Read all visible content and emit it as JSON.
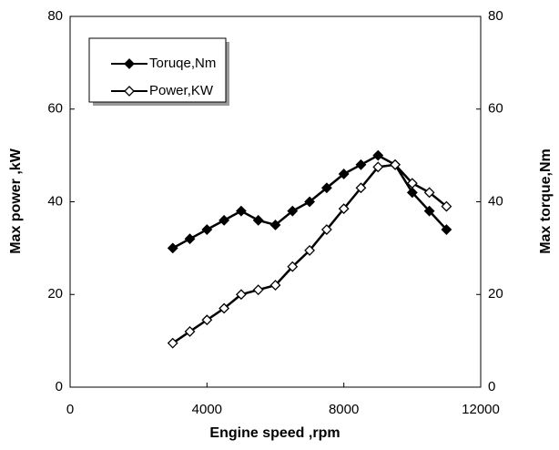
{
  "chart_data": {
    "type": "line",
    "x_label": "Engine speed ,rpm",
    "y_label": "Max power ,kW",
    "y2_label": "Max torque,Nm",
    "x": [
      3000,
      3500,
      4000,
      4500,
      5000,
      5500,
      6000,
      6500,
      7000,
      7500,
      8000,
      8500,
      9000,
      9500,
      10000,
      10500,
      11000
    ],
    "series": [
      {
        "name": "Toruqe,Nm",
        "color": "#000000",
        "marker": "filled-diamond",
        "axis": "y2",
        "values": [
          30,
          32,
          34,
          36,
          38,
          36,
          35,
          38,
          40,
          43,
          46,
          48,
          50,
          48,
          42,
          38,
          34
        ]
      },
      {
        "name": "Power,KW",
        "color": "#000000",
        "marker": "open-diamond",
        "values": [
          9.5,
          12,
          14.5,
          17,
          20,
          21,
          22,
          26,
          29.5,
          34,
          38.5,
          43,
          47.5,
          48,
          44,
          42,
          39
        ]
      }
    ],
    "xlim": [
      0,
      12000
    ],
    "xticks": [
      0,
      4000,
      8000,
      12000
    ],
    "ylim": [
      0,
      80
    ],
    "yticks": [
      0,
      20,
      40,
      60,
      80
    ],
    "y2lim": [
      0,
      80
    ],
    "y2ticks": [
      0,
      20,
      40,
      60,
      80
    ],
    "legend": "upper-left"
  }
}
